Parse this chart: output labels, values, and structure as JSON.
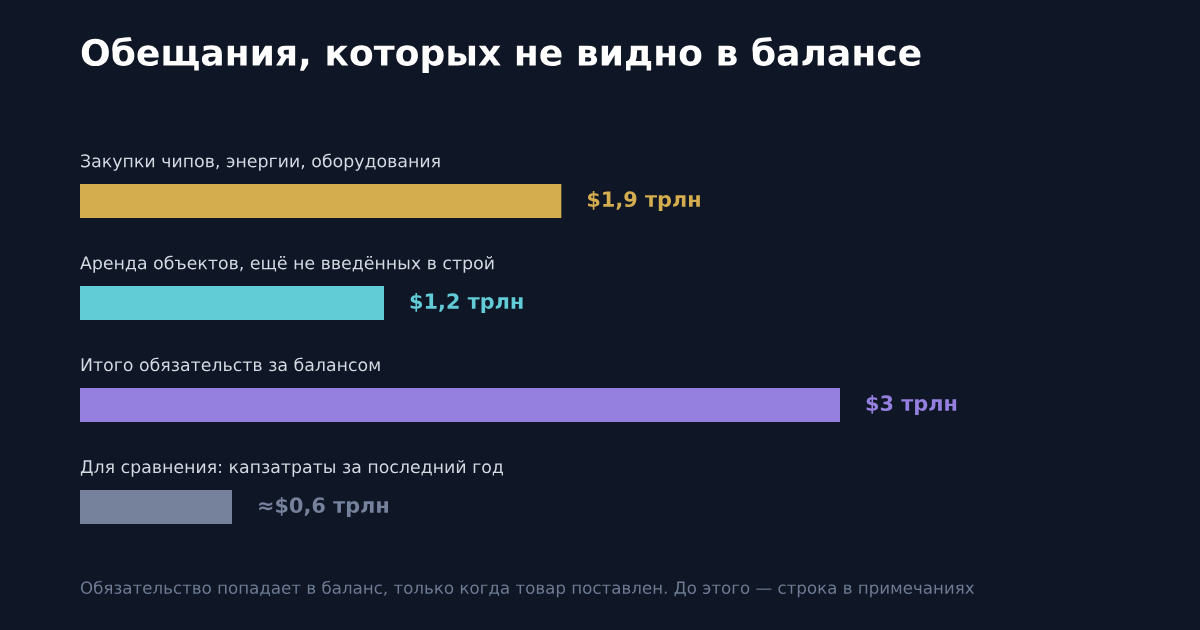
{
  "chart_data": {
    "type": "bar",
    "orientation": "horizontal",
    "title": "Обещания, которых не видно в балансе",
    "categories": [
      "Закупки чипов, энергии, оборудования",
      "Аренда объектов, ещё не введённых в строй",
      "Итого обязательств за балансом",
      "Для сравнения: капзатраты за последний год"
    ],
    "values": [
      1.9,
      1.2,
      3,
      0.6
    ],
    "colors": [
      "#d4ad4f",
      "#62ccd6",
      "#9580e0",
      "#76819c"
    ],
    "value_labels": [
      "$1,9 трлн",
      "$1,2 трлн",
      "$3 трлн",
      "≈$0,6 трлн"
    ],
    "annotations": [
      "Обязательство попадает в баланс, только когда товар поставлен. До этого — строка в примечаниях"
    ],
    "tick_labels": false
  }
}
